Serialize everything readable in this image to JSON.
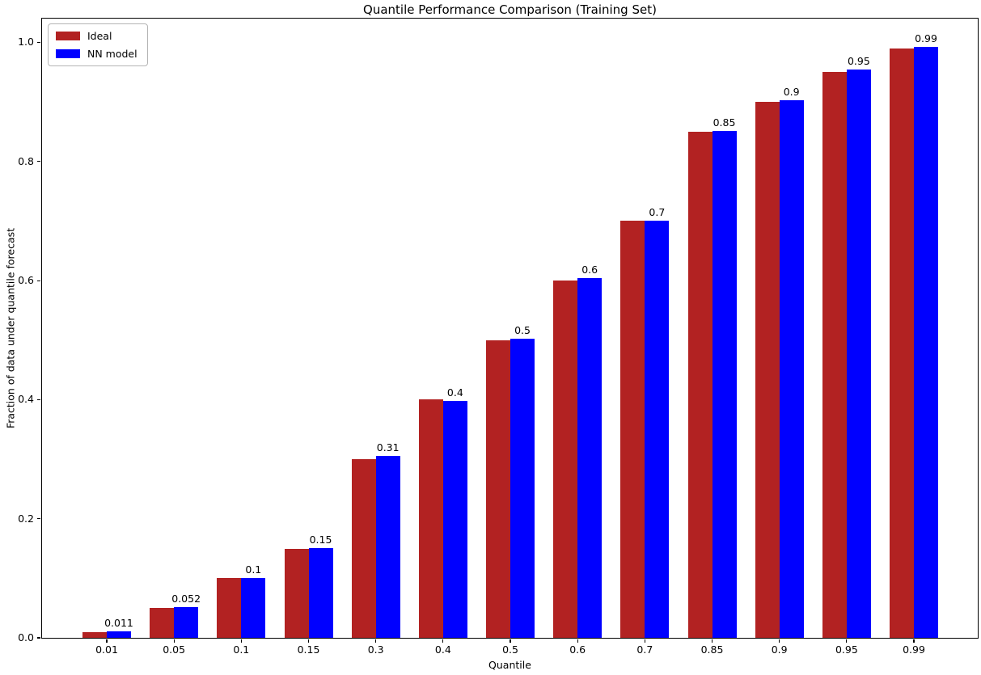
{
  "chart_data": {
    "type": "bar",
    "title": "Quantile Performance Comparison (Training Set)",
    "xlabel": "Quantile",
    "ylabel": "Fraction of data under quantile forecast",
    "categories": [
      "0.01",
      "0.05",
      "0.1",
      "0.15",
      "0.3",
      "0.4",
      "0.5",
      "0.6",
      "0.7",
      "0.85",
      "0.9",
      "0.95",
      "0.99"
    ],
    "series": [
      {
        "name": "Ideal",
        "color": "#b22222",
        "values": [
          0.01,
          0.05,
          0.1,
          0.15,
          0.3,
          0.4,
          0.5,
          0.6,
          0.7,
          0.85,
          0.9,
          0.95,
          0.99
        ]
      },
      {
        "name": "NN model",
        "color": "#0000ff",
        "values": [
          0.011,
          0.052,
          0.101,
          0.151,
          0.306,
          0.398,
          0.503,
          0.604,
          0.701,
          0.851,
          0.903,
          0.954,
          0.992
        ],
        "bar_labels": [
          "0.011",
          "0.052",
          "0.1",
          "0.15",
          "0.31",
          "0.4",
          "0.5",
          "0.6",
          "0.7",
          "0.85",
          "0.9",
          "0.95",
          "0.99"
        ]
      }
    ],
    "yticks": [
      "0.0",
      "0.2",
      "0.4",
      "0.6",
      "0.8",
      "1.0"
    ],
    "ylim": [
      0,
      1.04
    ],
    "grid": false,
    "legend_position": "upper-left",
    "background_color": "#ffffff",
    "text_color": "#000000",
    "axis_color": "#000000"
  }
}
